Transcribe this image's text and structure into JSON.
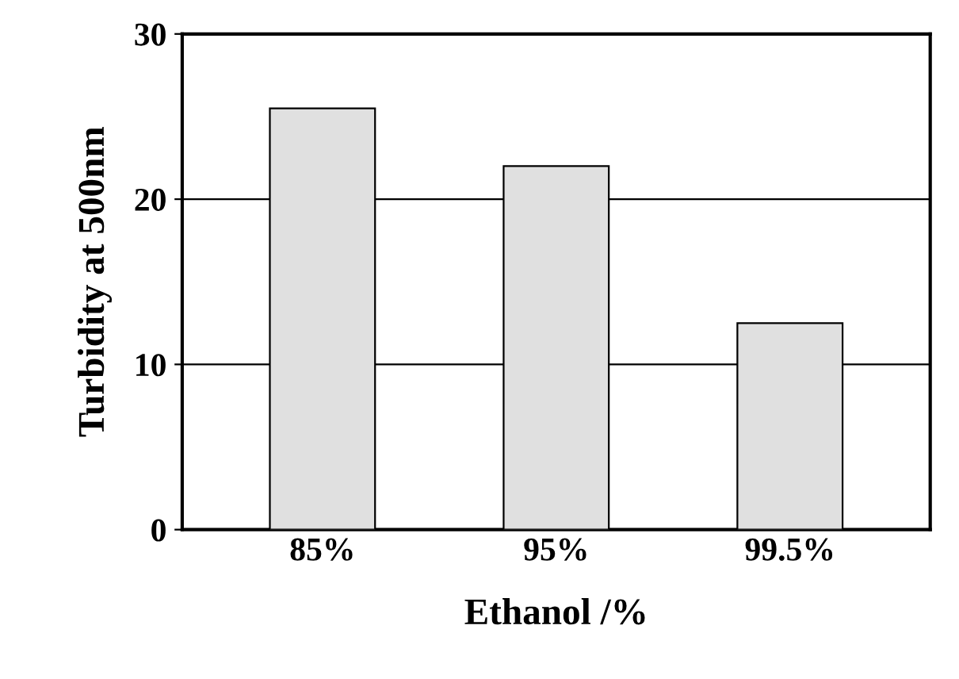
{
  "chart_data": {
    "type": "bar",
    "xlabel": "Ethanol /%",
    "ylabel": "Turbidity at 500nm",
    "categories": [
      "85%",
      "95%",
      "99.5%"
    ],
    "values": [
      25.5,
      22,
      12.5
    ],
    "color": "#e0e0e0",
    "ylim": [
      0,
      30
    ],
    "yticks": [
      0,
      10,
      20,
      30
    ],
    "grid": "y"
  }
}
